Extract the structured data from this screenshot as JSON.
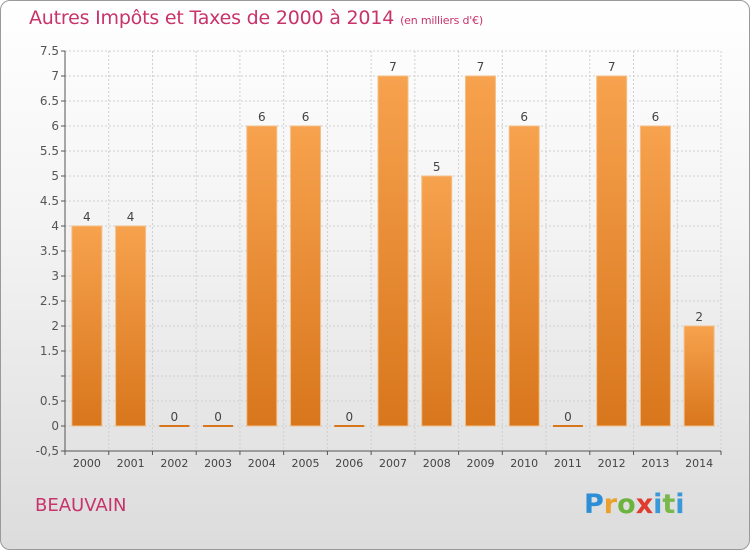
{
  "header": {
    "title": "Autres Impôts et Taxes de 2000 à 2014",
    "unit": "(en milliers d'€)"
  },
  "footer": {
    "commune": "BEAUVAIN",
    "logo_text": "Proxiti"
  },
  "colors": {
    "title": "#c8336a",
    "bar_light": "#f7a24e",
    "bar_dark": "#d8761c",
    "grid": "#cfcfcf"
  },
  "chart_data": {
    "type": "bar",
    "title": "Autres Impôts et Taxes de 2000 à 2014",
    "subtitle": "(en milliers d'€)",
    "xlabel": "",
    "ylabel": "",
    "categories": [
      "2000",
      "2001",
      "2002",
      "2003",
      "2004",
      "2005",
      "2006",
      "2007",
      "2008",
      "2009",
      "2010",
      "2011",
      "2012",
      "2013",
      "2014"
    ],
    "values": [
      4,
      4,
      0,
      0,
      6,
      6,
      0,
      7,
      5,
      7,
      6,
      0,
      7,
      6,
      2
    ],
    "data_labels": [
      "4",
      "4",
      "0",
      "0",
      "6",
      "6",
      "0",
      "7",
      "5",
      "7",
      "6",
      "0",
      "7",
      "6",
      "2"
    ],
    "ylim": [
      -0.5,
      7.5
    ],
    "yticks": [
      -0.5,
      0,
      0.5,
      1,
      1.5,
      2,
      2.5,
      3,
      3.5,
      4,
      4.5,
      5,
      5.5,
      6,
      6.5,
      7,
      7.5
    ],
    "ytick_labels": [
      "-0,5",
      "0",
      "0.5",
      "",
      "1.5",
      "2",
      "2.5",
      "3",
      "3.5",
      "4",
      "4.5",
      "5",
      "5.5",
      "6",
      "6.5",
      "7",
      "7.5"
    ],
    "grid": true,
    "legend": "none"
  }
}
